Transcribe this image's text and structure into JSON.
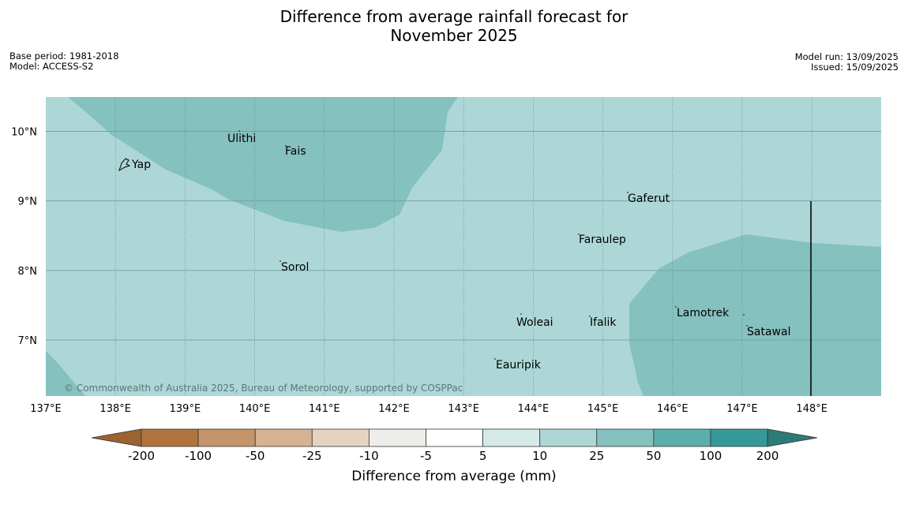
{
  "title": {
    "line1": "Difference from average rainfall forecast for",
    "line2": "November 2025"
  },
  "meta": {
    "base_period": "Base period: 1981-2018",
    "model": "Model: ACCESS-S2",
    "model_run": "Model run: 13/09/2025",
    "issued": "Issued: 15/09/2025"
  },
  "map": {
    "lon_ticks": [
      "137°E",
      "138°E",
      "139°E",
      "140°E",
      "141°E",
      "142°E",
      "143°E",
      "144°E",
      "145°E",
      "146°E",
      "147°E",
      "148°E"
    ],
    "lat_ticks": [
      "10°N",
      "9°N",
      "8°N",
      "7°N"
    ],
    "places": [
      "Ulithi",
      "Fais",
      "Yap",
      "Gaferut",
      "Faraulep",
      "Sorol",
      "Lamotrek",
      "Woleai",
      "Ifalik",
      "Satawal",
      "Eauripik"
    ],
    "copyright": "© Commonwealth of Australia 2025, Bureau of Meteorology, supported by COSPPac"
  },
  "legend": {
    "labels": [
      "-200",
      "-100",
      "-50",
      "-25",
      "-10",
      "-5",
      "5",
      "10",
      "25",
      "50",
      "100",
      "200"
    ],
    "colors": {
      "below_min": "#9a6330",
      "bins": [
        "#b0743c",
        "#c4956a",
        "#d5b291",
        "#e5d2c1",
        "#efede9",
        "#ffffff",
        "#d6eaea",
        "#add7d6",
        "#85c1bf",
        "#5caeab",
        "#349a97"
      ],
      "above_max": "#2d7b79"
    },
    "title": "Difference from average (mm)"
  },
  "colors": {
    "sea_base": "#add7d6",
    "sea_wet": "#85c1bf",
    "gridline": "#5a8c8a"
  }
}
